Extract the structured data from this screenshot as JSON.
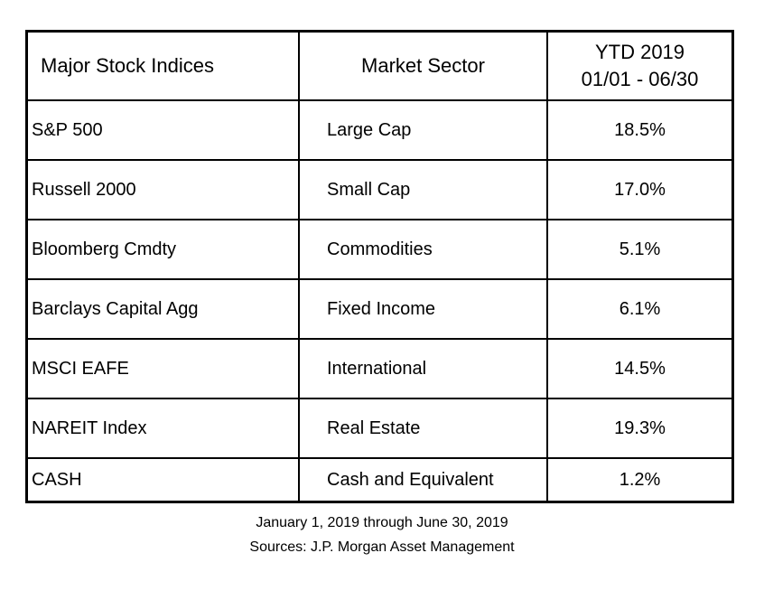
{
  "table": {
    "headers": {
      "index": "Major Stock Indices",
      "sector": "Market Sector",
      "ytd_line1": "YTD 2019",
      "ytd_line2": "01/01 - 06/30"
    },
    "rows": [
      {
        "index": "S&P 500",
        "sector": "Large Cap",
        "ytd": "18.5%"
      },
      {
        "index": "Russell 2000",
        "sector": "Small Cap",
        "ytd": "17.0%"
      },
      {
        "index": "Bloomberg Cmdty",
        "sector": "Commodities",
        "ytd": "5.1%"
      },
      {
        "index": "Barclays Capital Agg",
        "sector": "Fixed Income",
        "ytd": "6.1%"
      },
      {
        "index": "MSCI EAFE",
        "sector": "International",
        "ytd": "14.5%"
      },
      {
        "index": "NAREIT Index",
        "sector": "Real Estate",
        "ytd": "19.3%"
      },
      {
        "index": "CASH",
        "sector": "Cash and Equivalent",
        "ytd": "1.2%"
      }
    ]
  },
  "footer": {
    "period": "January 1, 2019 through June 30, 2019",
    "sources": "Sources: J.P. Morgan Asset Management"
  }
}
